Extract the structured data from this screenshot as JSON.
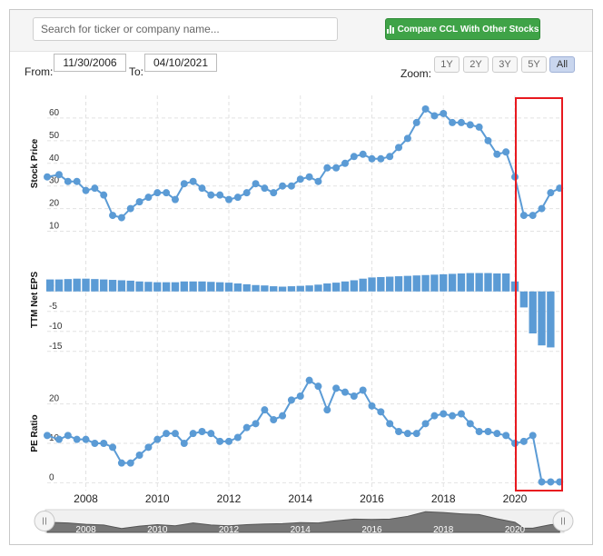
{
  "search": {
    "placeholder": "Search for ticker or company name..."
  },
  "compare_button": {
    "label": "Compare CCL With Other Stocks"
  },
  "range": {
    "from_label": "From:",
    "from_value": "11/30/2006",
    "to_label": "To:",
    "to_value": "04/10/2021"
  },
  "zoom": {
    "label": "Zoom:",
    "options": [
      "1Y",
      "2Y",
      "3Y",
      "5Y",
      "All"
    ],
    "active": "All"
  },
  "colors": {
    "series": "#5b9bd5",
    "highlight": "#e8191f",
    "button": "#3fa347"
  },
  "chart_data": [
    {
      "type": "line",
      "ylabel": "Stock Price",
      "yticks": [
        10,
        20,
        30,
        40,
        50,
        60
      ],
      "ylim": [
        7,
        68
      ],
      "x": [
        2006.92,
        2007.25,
        2007.5,
        2007.75,
        2008,
        2008.25,
        2008.5,
        2008.75,
        2009,
        2009.25,
        2009.5,
        2009.75,
        2010,
        2010.25,
        2010.5,
        2010.75,
        2011,
        2011.25,
        2011.5,
        2011.75,
        2012,
        2012.25,
        2012.5,
        2012.75,
        2013,
        2013.25,
        2013.5,
        2013.75,
        2014,
        2014.25,
        2014.5,
        2014.75,
        2015,
        2015.25,
        2015.5,
        2015.75,
        2016,
        2016.25,
        2016.5,
        2016.75,
        2017,
        2017.25,
        2017.5,
        2017.75,
        2018,
        2018.25,
        2018.5,
        2018.75,
        2019,
        2019.25,
        2019.5,
        2019.75,
        2020,
        2020.25,
        2020.5,
        2020.75,
        2021,
        2021.25
      ],
      "values": [
        34,
        35,
        32,
        32,
        28,
        29,
        26,
        17,
        16,
        20,
        23,
        25,
        27,
        27,
        24,
        31,
        32,
        29,
        26,
        26,
        24,
        25,
        27,
        31,
        29,
        27,
        30,
        30,
        33,
        34,
        32,
        38,
        38,
        40,
        43,
        44,
        42,
        42,
        43,
        47,
        51,
        58,
        64,
        61,
        62,
        58,
        58,
        57,
        56,
        50,
        44,
        45,
        34,
        17,
        17,
        20,
        27,
        29
      ]
    },
    {
      "type": "bar",
      "ylabel": "TTM Net EPS",
      "yticks": [
        0,
        -5,
        -10,
        -15
      ],
      "ylim": [
        -18,
        7
      ],
      "x": [
        2007,
        2007.25,
        2007.5,
        2007.75,
        2008,
        2008.25,
        2008.5,
        2008.75,
        2009,
        2009.25,
        2009.5,
        2009.75,
        2010,
        2010.25,
        2010.5,
        2010.75,
        2011,
        2011.25,
        2011.5,
        2011.75,
        2012,
        2012.25,
        2012.5,
        2012.75,
        2013,
        2013.25,
        2013.5,
        2013.75,
        2014,
        2014.25,
        2014.5,
        2014.75,
        2015,
        2015.25,
        2015.5,
        2015.75,
        2016,
        2016.25,
        2016.5,
        2016.75,
        2017,
        2017.25,
        2017.5,
        2017.75,
        2018,
        2018.25,
        2018.5,
        2018.75,
        2019,
        2019.25,
        2019.5,
        2019.75,
        2020,
        2020.25,
        2020.5,
        2020.75,
        2021
      ],
      "values": [
        3.0,
        3.0,
        3.1,
        3.2,
        3.2,
        3.1,
        3.0,
        2.9,
        2.8,
        2.7,
        2.5,
        2.4,
        2.3,
        2.3,
        2.3,
        2.5,
        2.5,
        2.5,
        2.4,
        2.3,
        2.2,
        2.0,
        1.8,
        1.6,
        1.5,
        1.3,
        1.2,
        1.3,
        1.4,
        1.5,
        1.7,
        2.0,
        2.2,
        2.5,
        2.8,
        3.2,
        3.5,
        3.6,
        3.7,
        3.8,
        3.9,
        4.0,
        4.1,
        4.2,
        4.3,
        4.4,
        4.5,
        4.6,
        4.6,
        4.6,
        4.5,
        4.5,
        2.5,
        -4.0,
        -10.5,
        -13.5,
        -14.0
      ]
    },
    {
      "type": "line",
      "ylabel": "PE Ratio",
      "yticks": [
        0,
        10,
        20
      ],
      "ylim": [
        -2,
        28
      ],
      "x": [
        2006.92,
        2007.25,
        2007.5,
        2007.75,
        2008,
        2008.25,
        2008.5,
        2008.75,
        2009,
        2009.25,
        2009.5,
        2009.75,
        2010,
        2010.25,
        2010.5,
        2010.75,
        2011,
        2011.25,
        2011.5,
        2011.75,
        2012,
        2012.25,
        2012.5,
        2012.75,
        2013,
        2013.25,
        2013.5,
        2013.75,
        2014,
        2014.25,
        2014.5,
        2014.75,
        2015,
        2015.25,
        2015.5,
        2015.75,
        2016,
        2016.25,
        2016.5,
        2016.75,
        2017,
        2017.25,
        2017.5,
        2017.75,
        2018,
        2018.25,
        2018.5,
        2018.75,
        2019,
        2019.25,
        2019.5,
        2019.75,
        2020,
        2020.25,
        2020.5,
        2020.75,
        2021,
        2021.25
      ],
      "values": [
        12,
        11,
        12,
        11,
        11,
        10,
        10,
        9,
        5,
        5,
        7,
        9,
        11,
        12.5,
        12.5,
        10,
        12.5,
        13,
        12.5,
        10.5,
        10.5,
        11.5,
        14,
        15,
        18.5,
        16,
        17,
        21,
        22,
        26,
        24.5,
        18.5,
        24,
        23,
        22,
        23.5,
        19.5,
        18,
        15,
        13,
        12.5,
        12.5,
        15,
        17,
        17.5,
        17,
        17.5,
        15,
        13,
        13,
        12.5,
        12,
        10,
        10.5,
        12,
        0.2,
        0.2,
        0.2
      ]
    }
  ],
  "x_axis": {
    "ticks": [
      "2008",
      "2010",
      "2012",
      "2014",
      "2016",
      "2018",
      "2020"
    ]
  },
  "navigator": {
    "ticks": [
      "2008",
      "2010",
      "2012",
      "2014",
      "2016",
      "2018",
      "2020"
    ],
    "x": [
      2006.92,
      2007.5,
      2008,
      2008.5,
      2009,
      2009.5,
      2010,
      2010.5,
      2011,
      2011.5,
      2012,
      2012.5,
      2013,
      2013.5,
      2014,
      2014.5,
      2015,
      2015.5,
      2016,
      2016.5,
      2017,
      2017.5,
      2018,
      2018.5,
      2019,
      2019.5,
      2020,
      2020.25,
      2020.5,
      2021,
      2021.25
    ],
    "values": [
      34,
      32,
      28,
      26,
      16,
      23,
      27,
      24,
      32,
      26,
      24,
      27,
      29,
      30,
      33,
      32,
      38,
      43,
      42,
      43,
      51,
      64,
      62,
      58,
      56,
      44,
      34,
      17,
      17,
      27,
      29
    ]
  }
}
